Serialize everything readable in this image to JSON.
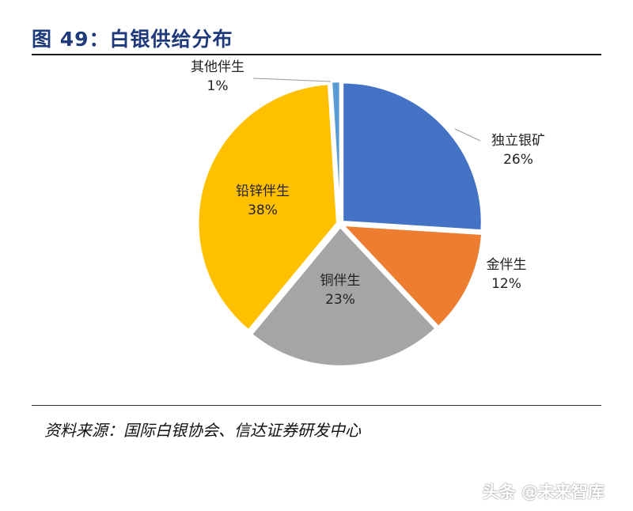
{
  "header": {
    "title": "图 49：白银供给分布"
  },
  "footer": {
    "source": "资料来源：国际白银协会、信达证券研发中心"
  },
  "watermark": {
    "text": "头条 @未来智库"
  },
  "chart_data": {
    "type": "pie",
    "title": "图 49：白银供给分布",
    "slices": [
      {
        "label": "独立银矿",
        "value": 26,
        "value_label": "26%",
        "color": "#4472C4"
      },
      {
        "label": "金伴生",
        "value": 12,
        "value_label": "12%",
        "color": "#ED7D31"
      },
      {
        "label": "铜伴生",
        "value": 23,
        "value_label": "23%",
        "color": "#A5A5A5"
      },
      {
        "label": "铅锌伴生",
        "value": 38,
        "value_label": "38%",
        "color": "#FFC000"
      },
      {
        "label": "其他伴生",
        "value": 1,
        "value_label": "1%",
        "color": "#5B9BD5"
      }
    ],
    "start_angle": "12-o'clock",
    "direction": "clockwise",
    "exploded": true
  }
}
